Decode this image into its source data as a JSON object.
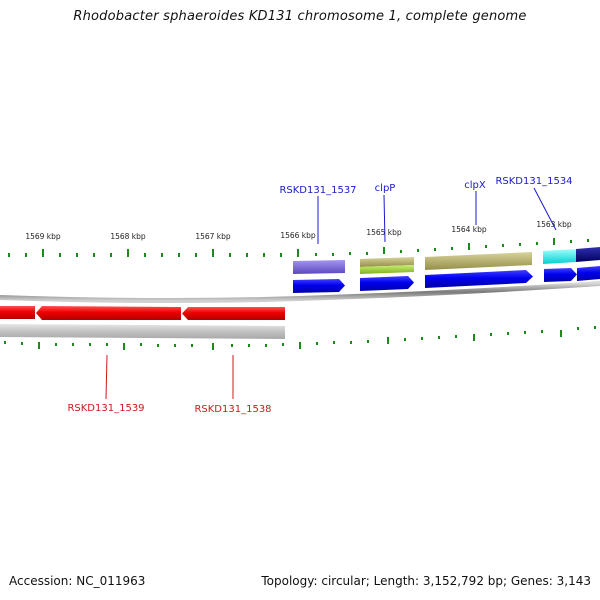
{
  "title": "Rhodobacter sphaeroides KD131 chromosome 1, complete genome",
  "footer": {
    "accession": "Accession: NC_011963",
    "stats": "Topology: circular; Length: 3,152,792 bp; Genes: 3,143"
  },
  "scale": {
    "unit": "kbp",
    "labels": [
      "1569 kbp",
      "1568 kbp",
      "1567 kbp",
      "1566 kbp",
      "1565 kbp",
      "1564 kbp",
      "1563 kbp"
    ]
  },
  "genes_forward": [
    {
      "name": "RSKD131_1537",
      "color": "#1a1acc"
    },
    {
      "name": "clpP",
      "color": "#1a1acc"
    },
    {
      "name": "clpX",
      "color": "#1a1acc"
    },
    {
      "name": "RSKD131_1534",
      "color": "#1a1acc"
    }
  ],
  "genes_reverse": [
    {
      "name": "RSKD131_1539",
      "color": "#cc1a1a"
    },
    {
      "name": "RSKD131_1538",
      "color": "#cc1a1a"
    }
  ],
  "colors": {
    "forward_cds": "#0000ff",
    "reverse_cds": "#ff0000",
    "backbone": "#8c8c8c",
    "ticks": "#1a8c1a",
    "cog_purple": "#7b68d8",
    "cog_olive": "#b5b06a",
    "cog_lightgreen": "#9acd32",
    "cog_cyan": "#00ffff",
    "cog_navy": "#0a0a8a"
  }
}
